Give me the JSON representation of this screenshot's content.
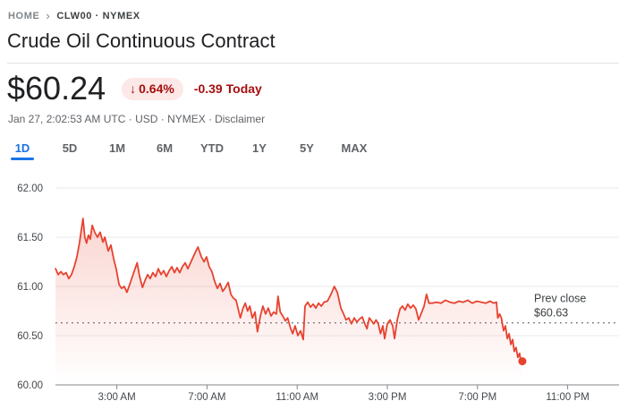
{
  "breadcrumb": {
    "home": "HOME",
    "current": "CLW00 · NYMEX"
  },
  "header": {
    "title": "Crude Oil Continuous Contract"
  },
  "quote": {
    "price": "$60.24",
    "down_arrow": "↓",
    "change_percent": "0.64%",
    "change_amount": "-0.39",
    "change_period": "Today",
    "meta_text": "Jan 27, 2:02:53 AM UTC · USD · NYMEX ·",
    "disclaimer_label": "Disclaimer"
  },
  "range_tabs": [
    {
      "label": "1D",
      "active": true
    },
    {
      "label": "5D",
      "active": false
    },
    {
      "label": "1M",
      "active": false
    },
    {
      "label": "6M",
      "active": false
    },
    {
      "label": "YTD",
      "active": false
    },
    {
      "label": "1Y",
      "active": false
    },
    {
      "label": "5Y",
      "active": false
    },
    {
      "label": "MAX",
      "active": false
    }
  ],
  "colors": {
    "line_red": "#e7422f",
    "badge_bg": "#fce8e6",
    "badge_text": "#a50e0e",
    "accent_blue": "#1a73e8",
    "gridline": "#e8eaed",
    "axis": "#80868b",
    "axis_label": "#44484c",
    "prev_close_dotted": "#70757a"
  },
  "chart_data": {
    "type": "area",
    "title": "Crude Oil Continuous Contract 1D price",
    "xlabel": "",
    "ylabel": "",
    "x_unit": "hours_since_midnight",
    "grid": true,
    "ylim": [
      60.0,
      62.0
    ],
    "y_ticks": [
      {
        "value": 62.0,
        "label": "62.00"
      },
      {
        "value": 61.5,
        "label": "61.50"
      },
      {
        "value": 61.0,
        "label": "61.00"
      },
      {
        "value": 60.5,
        "label": "60.50"
      },
      {
        "value": 60.0,
        "label": "60.00"
      }
    ],
    "x_ticks": [
      {
        "hour": 3,
        "label": "3:00 AM"
      },
      {
        "hour": 7,
        "label": "7:00 AM"
      },
      {
        "hour": 11,
        "label": "11:00 AM"
      },
      {
        "hour": 15,
        "label": "3:00 PM"
      },
      {
        "hour": 19,
        "label": "7:00 PM"
      },
      {
        "hour": 23,
        "label": "11:00 PM"
      }
    ],
    "prev_close": {
      "value": 60.63,
      "label_line1": "Prev close",
      "label_line2": "$60.63"
    },
    "end_dot": [
      20.99,
      60.24
    ],
    "series": [
      {
        "name": "CLW00 price",
        "color": "#e7422f",
        "points": [
          [
            0.28,
            61.18
          ],
          [
            0.4,
            61.12
          ],
          [
            0.52,
            61.15
          ],
          [
            0.63,
            61.12
          ],
          [
            0.75,
            61.14
          ],
          [
            0.87,
            61.08
          ],
          [
            0.99,
            61.12
          ],
          [
            1.11,
            61.2
          ],
          [
            1.23,
            61.3
          ],
          [
            1.35,
            61.45
          ],
          [
            1.43,
            61.58
          ],
          [
            1.5,
            61.69
          ],
          [
            1.58,
            61.5
          ],
          [
            1.66,
            61.44
          ],
          [
            1.74,
            61.52
          ],
          [
            1.82,
            61.48
          ],
          [
            1.91,
            61.62
          ],
          [
            2.02,
            61.55
          ],
          [
            2.14,
            61.5
          ],
          [
            2.26,
            61.55
          ],
          [
            2.38,
            61.45
          ],
          [
            2.47,
            61.5
          ],
          [
            2.62,
            61.36
          ],
          [
            2.74,
            61.42
          ],
          [
            2.86,
            61.28
          ],
          [
            2.98,
            61.17
          ],
          [
            3.1,
            61.02
          ],
          [
            3.21,
            60.98
          ],
          [
            3.33,
            61.0
          ],
          [
            3.45,
            60.94
          ],
          [
            3.57,
            61.02
          ],
          [
            3.69,
            61.1
          ],
          [
            3.81,
            61.18
          ],
          [
            3.9,
            61.24
          ],
          [
            4.01,
            61.1
          ],
          [
            4.14,
            60.99
          ],
          [
            4.25,
            61.06
          ],
          [
            4.37,
            61.12
          ],
          [
            4.48,
            61.08
          ],
          [
            4.6,
            61.14
          ],
          [
            4.72,
            61.1
          ],
          [
            4.84,
            61.18
          ],
          [
            4.96,
            61.12
          ],
          [
            5.08,
            61.16
          ],
          [
            5.2,
            61.1
          ],
          [
            5.32,
            61.16
          ],
          [
            5.44,
            61.2
          ],
          [
            5.56,
            61.14
          ],
          [
            5.67,
            61.19
          ],
          [
            5.79,
            61.14
          ],
          [
            5.91,
            61.2
          ],
          [
            6.03,
            61.24
          ],
          [
            6.15,
            61.18
          ],
          [
            6.27,
            61.24
          ],
          [
            6.39,
            61.3
          ],
          [
            6.51,
            61.36
          ],
          [
            6.6,
            61.4
          ],
          [
            6.75,
            61.3
          ],
          [
            6.87,
            61.25
          ],
          [
            6.98,
            61.3
          ],
          [
            7.1,
            61.2
          ],
          [
            7.22,
            61.15
          ],
          [
            7.34,
            61.05
          ],
          [
            7.46,
            60.98
          ],
          [
            7.58,
            61.03
          ],
          [
            7.7,
            60.95
          ],
          [
            7.82,
            60.99
          ],
          [
            7.94,
            61.04
          ],
          [
            8.06,
            60.92
          ],
          [
            8.17,
            60.88
          ],
          [
            8.29,
            60.86
          ],
          [
            8.48,
            60.68
          ],
          [
            8.6,
            60.78
          ],
          [
            8.7,
            60.83
          ],
          [
            8.8,
            60.75
          ],
          [
            8.9,
            60.8
          ],
          [
            9.01,
            60.68
          ],
          [
            9.13,
            60.74
          ],
          [
            9.24,
            60.54
          ],
          [
            9.37,
            60.7
          ],
          [
            9.48,
            60.8
          ],
          [
            9.6,
            60.72
          ],
          [
            9.72,
            60.78
          ],
          [
            9.84,
            60.7
          ],
          [
            9.96,
            60.74
          ],
          [
            10.08,
            60.72
          ],
          [
            10.15,
            60.9
          ],
          [
            10.25,
            60.74
          ],
          [
            10.36,
            60.7
          ],
          [
            10.48,
            60.65
          ],
          [
            10.58,
            60.68
          ],
          [
            10.7,
            60.58
          ],
          [
            10.8,
            60.52
          ],
          [
            10.91,
            60.6
          ],
          [
            11.03,
            60.5
          ],
          [
            11.15,
            60.55
          ],
          [
            11.27,
            60.46
          ],
          [
            11.35,
            60.8
          ],
          [
            11.47,
            60.84
          ],
          [
            11.59,
            60.79
          ],
          [
            11.71,
            60.82
          ],
          [
            11.83,
            60.78
          ],
          [
            11.95,
            60.83
          ],
          [
            12.07,
            60.8
          ],
          [
            12.19,
            60.84
          ],
          [
            12.34,
            60.85
          ],
          [
            12.5,
            60.92
          ],
          [
            12.65,
            61.0
          ],
          [
            12.78,
            60.94
          ],
          [
            12.94,
            60.78
          ],
          [
            13.06,
            60.72
          ],
          [
            13.17,
            60.66
          ],
          [
            13.29,
            60.68
          ],
          [
            13.41,
            60.62
          ],
          [
            13.53,
            60.68
          ],
          [
            13.65,
            60.64
          ],
          [
            13.77,
            60.67
          ],
          [
            13.89,
            60.69
          ],
          [
            14.0,
            60.62
          ],
          [
            14.1,
            60.57
          ],
          [
            14.2,
            60.68
          ],
          [
            14.3,
            60.65
          ],
          [
            14.4,
            60.62
          ],
          [
            14.5,
            60.66
          ],
          [
            14.6,
            60.62
          ],
          [
            14.7,
            60.52
          ],
          [
            14.8,
            60.6
          ],
          [
            14.88,
            60.47
          ],
          [
            15.0,
            60.62
          ],
          [
            15.12,
            60.66
          ],
          [
            15.24,
            60.6
          ],
          [
            15.32,
            60.47
          ],
          [
            15.44,
            60.66
          ],
          [
            15.56,
            60.77
          ],
          [
            15.67,
            60.8
          ],
          [
            15.79,
            60.76
          ],
          [
            15.91,
            60.82
          ],
          [
            16.03,
            60.78
          ],
          [
            16.15,
            60.81
          ],
          [
            16.27,
            60.77
          ],
          [
            16.39,
            60.66
          ],
          [
            16.51,
            60.73
          ],
          [
            16.63,
            60.8
          ],
          [
            16.74,
            60.92
          ],
          [
            16.85,
            60.83
          ],
          [
            16.98,
            60.83
          ],
          [
            17.18,
            60.84
          ],
          [
            17.38,
            60.83
          ],
          [
            17.58,
            60.86
          ],
          [
            17.78,
            60.84
          ],
          [
            17.98,
            60.83
          ],
          [
            18.17,
            60.85
          ],
          [
            18.37,
            60.84
          ],
          [
            18.57,
            60.86
          ],
          [
            18.77,
            60.83
          ],
          [
            18.97,
            60.85
          ],
          [
            19.17,
            60.84
          ],
          [
            19.37,
            60.83
          ],
          [
            19.56,
            60.85
          ],
          [
            19.72,
            60.83
          ],
          [
            19.84,
            60.84
          ],
          [
            19.9,
            60.68
          ],
          [
            19.98,
            60.72
          ],
          [
            20.06,
            60.68
          ],
          [
            20.16,
            60.55
          ],
          [
            20.24,
            60.6
          ],
          [
            20.32,
            60.47
          ],
          [
            20.4,
            60.52
          ],
          [
            20.48,
            60.41
          ],
          [
            20.56,
            60.46
          ],
          [
            20.63,
            60.34
          ],
          [
            20.71,
            60.38
          ],
          [
            20.79,
            60.28
          ],
          [
            20.87,
            60.32
          ],
          [
            20.93,
            60.22
          ],
          [
            20.99,
            60.24
          ]
        ]
      }
    ]
  }
}
